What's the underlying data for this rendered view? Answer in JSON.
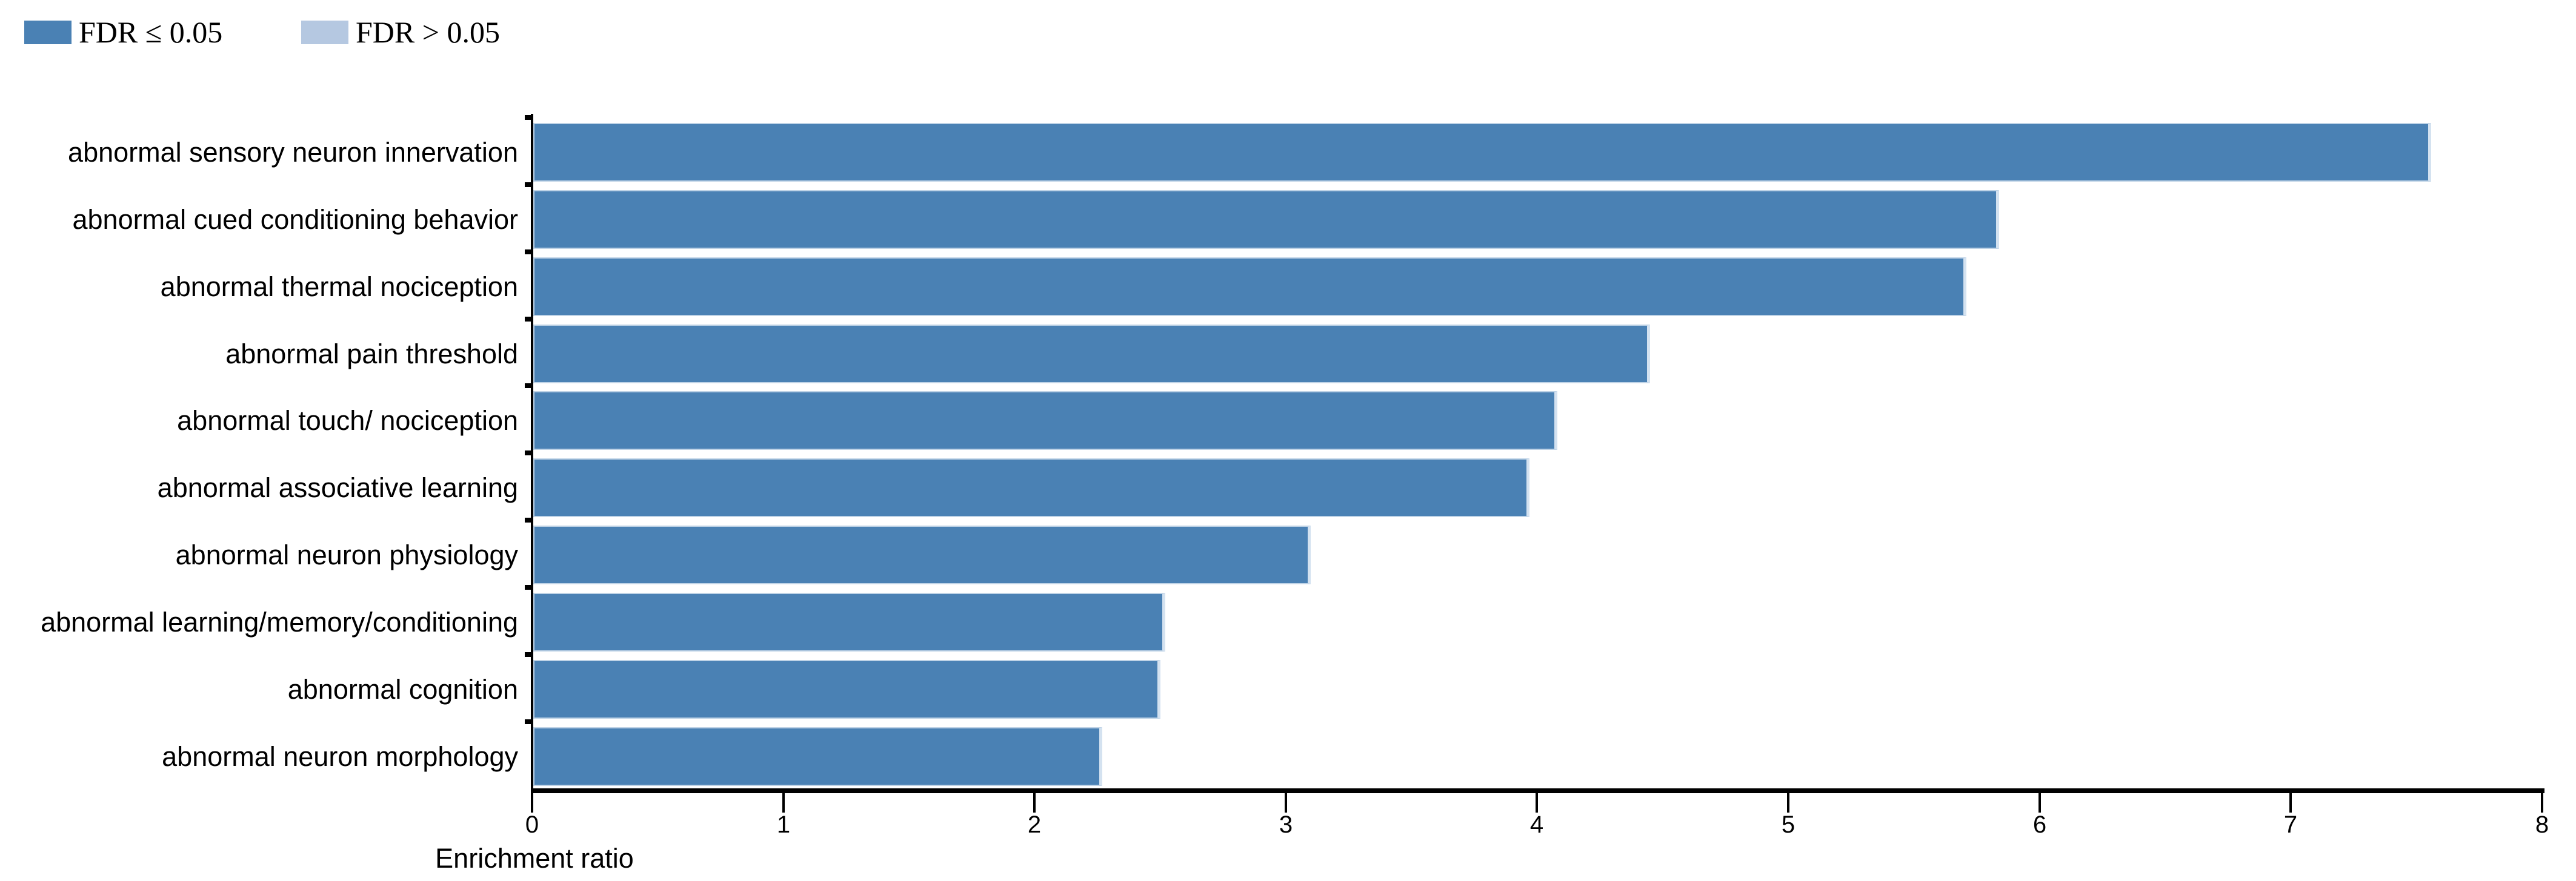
{
  "legend": {
    "items": [
      {
        "id": "fdr-significant",
        "label": "FDR ≤ 0.05",
        "color": "#4A81B4"
      },
      {
        "id": "fdr-not-significant",
        "label": "FDR > 0.05",
        "color": "#B5C8E1"
      }
    ]
  },
  "chart_data": {
    "type": "bar",
    "orientation": "horizontal",
    "title": "",
    "xlabel": "Enrichment ratio",
    "ylabel": "",
    "xlim": [
      0,
      8
    ],
    "x_ticks": [
      "0",
      "1",
      "2",
      "3",
      "4",
      "5",
      "6",
      "7",
      "8"
    ],
    "grid": false,
    "legend_position": "top-left",
    "categories": [
      "abnormal sensory neuron innervation",
      "abnormal cued conditioning behavior",
      "abnormal thermal nociception",
      "abnormal pain threshold",
      "abnormal touch/ nociception",
      "abnormal associative learning",
      "abnormal neuron physiology",
      "abnormal learning/memory/conditioning",
      "abnormal cognition",
      "abnormal neuron morphology"
    ],
    "values": [
      7.56,
      5.84,
      5.71,
      4.45,
      4.08,
      3.97,
      3.1,
      2.52,
      2.5,
      2.27
    ],
    "fdr_significant": [
      true,
      true,
      true,
      true,
      true,
      true,
      true,
      true,
      true,
      true
    ],
    "colors": {
      "fdr_le_005": "#4A81B4",
      "fdr_gt_005": "#B5C8E1",
      "axis": "#000000",
      "background": "#FFFFFF"
    }
  }
}
